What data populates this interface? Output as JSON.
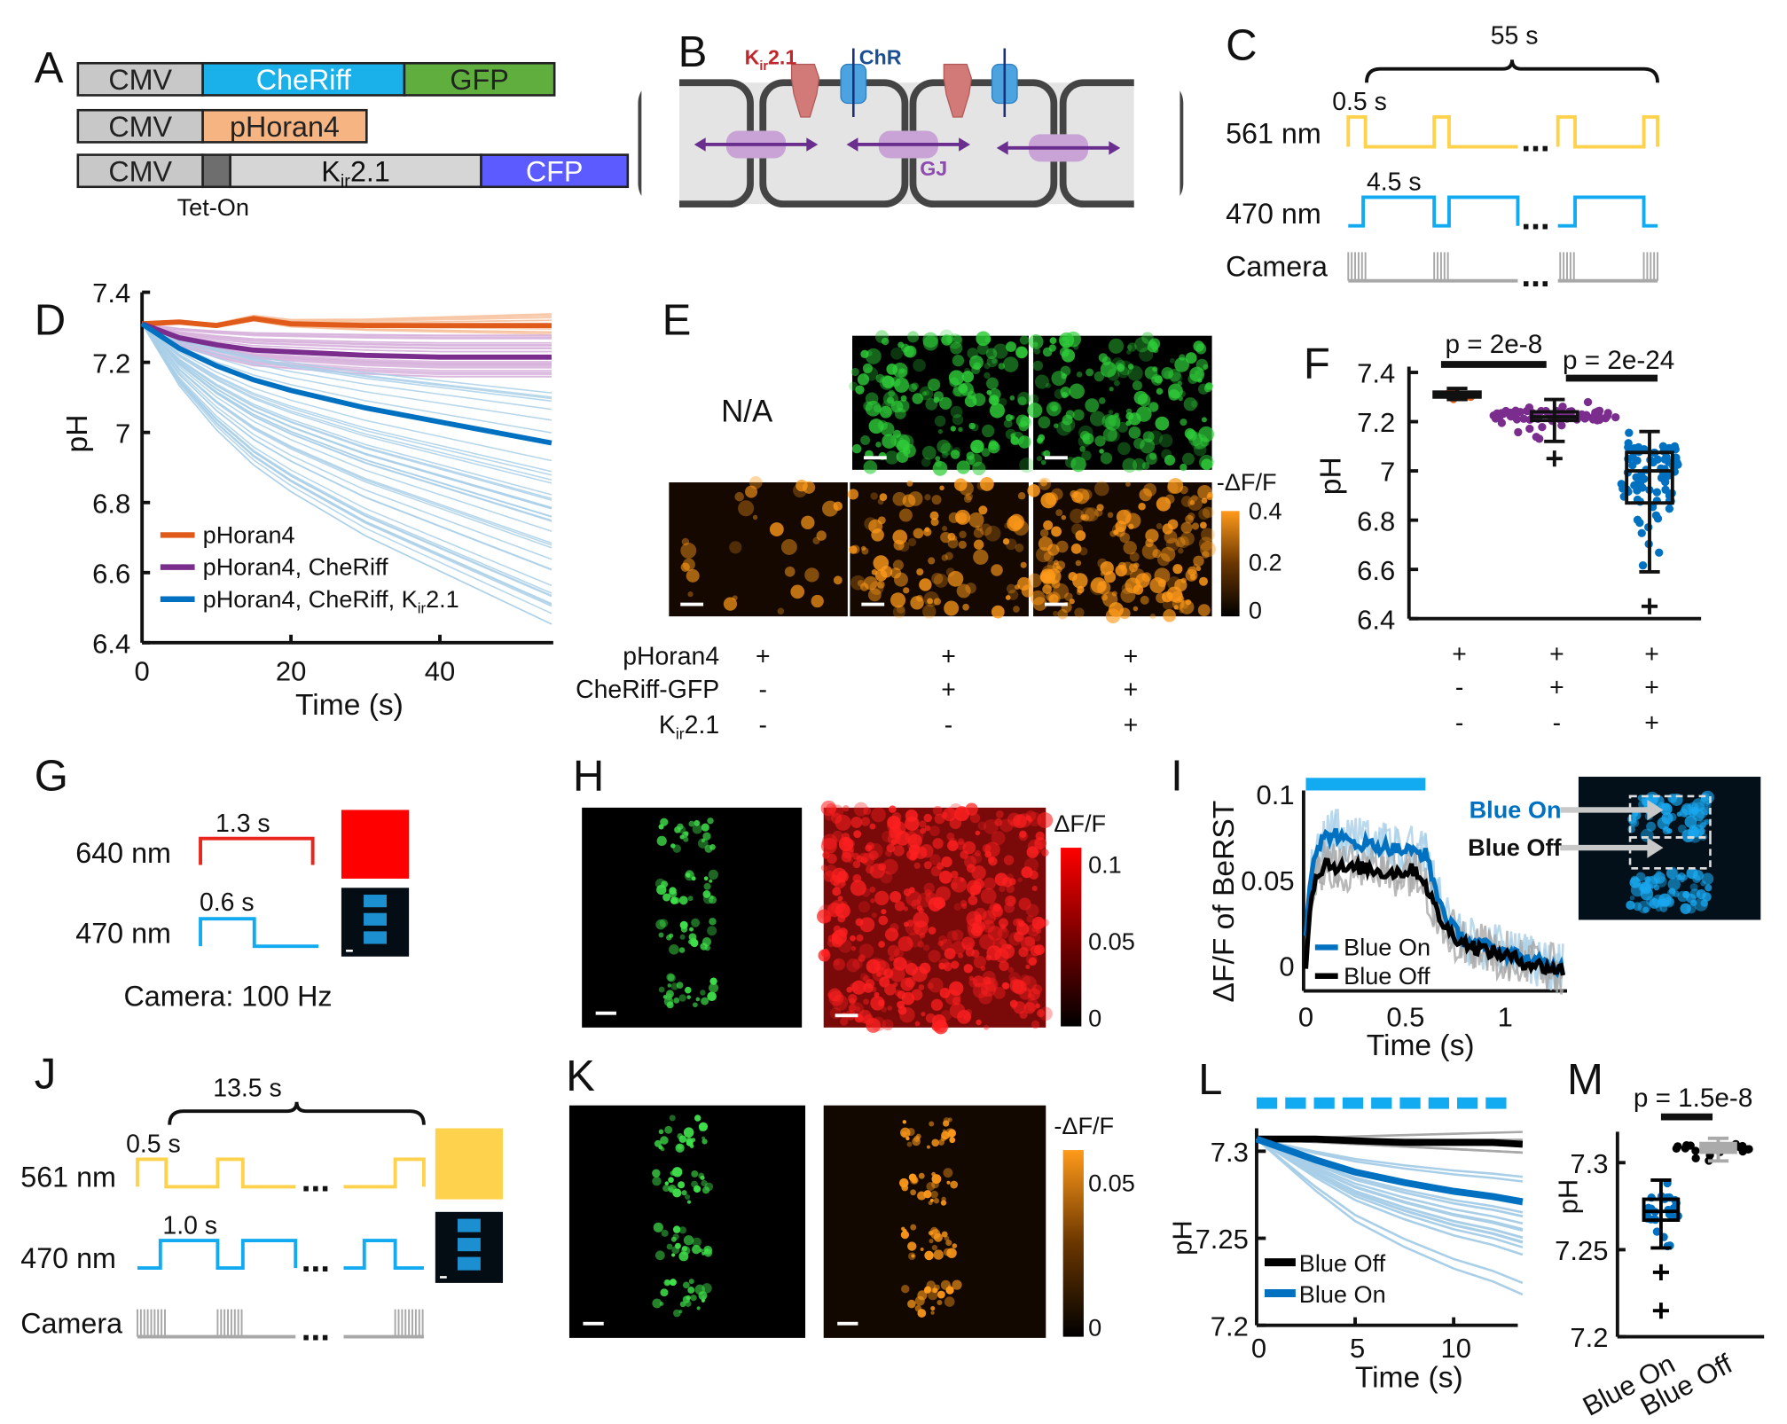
{
  "panel_labels": [
    "A",
    "B",
    "C",
    "D",
    "E",
    "F",
    "G",
    "H",
    "I",
    "J",
    "K",
    "L",
    "M"
  ],
  "colors": {
    "yellow": "#ffd24d",
    "blue": "#12aaf0",
    "dark_blue": "#0070c0",
    "orange": "#e05a1a",
    "purple": "#7b2d8e",
    "red": "#ff0000",
    "light_blue": "#a9cfe8",
    "gray": "#a8a8a8"
  },
  "panel_a": {
    "rows": [
      [
        {
          "label": "CMV",
          "color": "#c8c8c8"
        },
        {
          "label": "CheRiff",
          "color": "#1ab0ea",
          "text_color": "#ffffff"
        },
        {
          "label": "GFP",
          "color": "#5fae3e"
        }
      ],
      [
        {
          "label": "CMV",
          "color": "#c8c8c8"
        },
        {
          "label": "pHoran4",
          "color": "#f6b483"
        }
      ],
      [
        {
          "label": "CMV",
          "color": "#c8c8c8"
        },
        {
          "label": "",
          "color": "#6e6e6e"
        },
        {
          "label": "Kir2.1",
          "color": "#d6d6d6"
        },
        {
          "label": "CFP",
          "color": "#5b5bff",
          "text_color": "#ffffff"
        }
      ]
    ],
    "kir": {
      "main": "K",
      "sub": "ir",
      "rest": "2.1"
    },
    "tet_on": "Tet-On"
  },
  "panel_b": {
    "kir": {
      "main": "K",
      "sub": "ir",
      "rest": "2.1"
    },
    "chr": "ChR",
    "gj": "GJ",
    "kir_color": "#c0272d",
    "chr_color": "#1b4f93",
    "gj_color": "#8e4bb0"
  },
  "panel_c": {
    "total": "55 s",
    "pulse_561": "0.5 s",
    "pulse_470": "4.5 s",
    "row_561": "561 nm",
    "row_470": "470 nm",
    "row_camera": "Camera",
    "ellipsis": "..."
  },
  "panel_d": {
    "chart_data": {
      "type": "line",
      "xlabel": "Time (s)",
      "ylabel": "pH",
      "xlim": [
        0,
        55
      ],
      "ylim": [
        6.4,
        7.4
      ],
      "xticks": [
        "0",
        "20",
        "40"
      ],
      "yticks": [
        "6.4",
        "6.6",
        "6.8",
        "7",
        "7.2",
        "7.4"
      ],
      "legend_position": "bottom-left",
      "x": [
        0,
        5,
        10,
        15,
        20,
        30,
        40,
        55
      ],
      "series": [
        {
          "name": "pHoran4",
          "color": "#e05a1a",
          "trace_color": "#f7c19c",
          "values": [
            7.31,
            7.315,
            7.305,
            7.325,
            7.31,
            7.305,
            7.305,
            7.305
          ],
          "individual_final_range": [
            7.28,
            7.34
          ]
        },
        {
          "name": "pHoran4, CheRiff",
          "color": "#7b2d8e",
          "trace_color": "#d8b4dd",
          "values": [
            7.31,
            7.27,
            7.25,
            7.235,
            7.23,
            7.22,
            7.215,
            7.215
          ],
          "individual_final_range": [
            7.15,
            7.28
          ]
        },
        {
          "name": "pHoran4, CheRiff, Kir2.1",
          "name_parts": {
            "pre": "pHoran4, CheRiff, K",
            "sub": "ir",
            "rest": "2.1"
          },
          "color": "#0070c0",
          "trace_color": "#a9cfe8",
          "values": [
            7.31,
            7.24,
            7.19,
            7.15,
            7.12,
            7.07,
            7.03,
            6.97
          ],
          "individual_final_range": [
            6.45,
            7.13
          ]
        }
      ]
    }
  },
  "panel_e": {
    "na": "N/A",
    "colorbar_label": "-ΔF/F",
    "colorbar_ticks": [
      "0.4",
      "0.2",
      "0"
    ],
    "rows": [
      {
        "label": "pHoran4",
        "signs": [
          "+",
          "+",
          "+"
        ]
      },
      {
        "label": "CheRiff-GFP",
        "signs": [
          "-",
          "+",
          "+"
        ]
      },
      {
        "label_parts": {
          "main": "K",
          "sub": "ir",
          "rest": "2.1"
        },
        "signs": [
          "-",
          "-",
          "+"
        ]
      }
    ],
    "orange_intensity": [
      0.15,
      0.55,
      0.9
    ]
  },
  "panel_f": {
    "chart_data": {
      "type": "box",
      "ylabel": "pH",
      "ylim": [
        6.4,
        7.4
      ],
      "yticks": [
        "6.4",
        "6.6",
        "6.8",
        "7",
        "7.2",
        "7.4"
      ],
      "groups": [
        {
          "color": "#e05a1a",
          "median": 7.31,
          "q1": 7.3,
          "q3": 7.32,
          "whisker_low": 7.29,
          "whisker_high": 7.335,
          "outliers": [],
          "signs": [
            "+",
            "-",
            "-"
          ]
        },
        {
          "color": "#7b2d8e",
          "median": 7.22,
          "q1": 7.205,
          "q3": 7.24,
          "whisker_low": 7.12,
          "whisker_high": 7.29,
          "outliers": [
            7.05
          ],
          "signs": [
            "+",
            "+",
            "-"
          ]
        },
        {
          "color": "#0070c0",
          "median": 7.0,
          "q1": 6.87,
          "q3": 7.075,
          "whisker_low": 6.59,
          "whisker_high": 7.16,
          "outliers": [
            6.45
          ],
          "signs": [
            "+",
            "+",
            "+"
          ]
        }
      ],
      "comparisons": [
        {
          "label": "p = 2e-8",
          "between": [
            0,
            1
          ]
        },
        {
          "label": "p = 2e-24",
          "between": [
            1,
            2
          ]
        }
      ]
    }
  },
  "panel_g": {
    "pulse_640": "1.3 s",
    "pulse_470": "0.6 s",
    "row_640": "640 nm",
    "row_470": "470 nm",
    "camera": "Camera: 100 Hz"
  },
  "panel_h": {
    "colorbar_label": "ΔF/F",
    "colorbar_ticks": [
      "0.1",
      "0.05",
      "0"
    ]
  },
  "panel_i": {
    "chart_data": {
      "type": "line",
      "xlabel": "Time (s)",
      "ylabel": "ΔF/F of BeRST",
      "xlim": [
        0,
        1.3
      ],
      "ylim": [
        -0.015,
        0.105
      ],
      "xticks": [
        "0",
        "0.5",
        "1"
      ],
      "yticks": [
        "0",
        "0.05",
        "0.1"
      ],
      "legend_position": "bottom-left",
      "stimulus_interval": [
        0,
        0.6
      ],
      "x": [
        0,
        0.02,
        0.05,
        0.1,
        0.15,
        0.2,
        0.3,
        0.4,
        0.5,
        0.55,
        0.6,
        0.65,
        0.7,
        0.75,
        0.8,
        0.9,
        1.0,
        1.1,
        1.2,
        1.3
      ],
      "series": [
        {
          "name": "Blue On",
          "color": "#0070c0",
          "band_color": "#a9cfe8",
          "values": [
            0.02,
            0.05,
            0.068,
            0.075,
            0.077,
            0.072,
            0.071,
            0.069,
            0.067,
            0.066,
            0.065,
            0.045,
            0.028,
            0.02,
            0.015,
            0.011,
            0.008,
            0.004,
            0.001,
            -0.002
          ]
        },
        {
          "name": "Blue Off",
          "color": "#000000",
          "band_color": "#a8a8a8",
          "values": [
            0.0,
            0.035,
            0.052,
            0.06,
            0.058,
            0.056,
            0.057,
            0.054,
            0.055,
            0.056,
            0.048,
            0.033,
            0.022,
            0.017,
            0.013,
            0.009,
            0.006,
            0.002,
            -0.001,
            -0.003
          ]
        }
      ]
    },
    "image_labels": {
      "on": "Blue On",
      "off": "Blue Off"
    }
  },
  "panel_j": {
    "total": "13.5 s",
    "pulse_561": "0.5 s",
    "pulse_470": "1.0 s",
    "row_561": "561 nm",
    "row_470": "470 nm",
    "row_camera": "Camera",
    "ellipsis": "..."
  },
  "panel_k": {
    "colorbar_label": "-ΔF/F",
    "colorbar_ticks": [
      "0.05",
      "0"
    ]
  },
  "panel_l": {
    "chart_data": {
      "type": "line",
      "xlabel": "Time (s)",
      "ylabel": "pH",
      "xlim": [
        0,
        13.5
      ],
      "ylim": [
        7.2,
        7.31
      ],
      "xticks": [
        "0",
        "5",
        "10"
      ],
      "yticks": [
        "7.2",
        "7.25",
        "7.3"
      ],
      "legend_position": "bottom-left",
      "stimulus_pulses": 9,
      "x": [
        0,
        1.5,
        3,
        5,
        7.5,
        10,
        12,
        13.5
      ],
      "series": [
        {
          "name": "Blue Off",
          "color": "#000000",
          "trace_color": "#a8a8a8",
          "values": [
            7.307,
            7.307,
            7.307,
            7.306,
            7.305,
            7.305,
            7.305,
            7.304
          ],
          "individual_final_range": [
            7.297,
            7.313
          ]
        },
        {
          "name": "Blue On",
          "color": "#0070c0",
          "trace_color": "#a9cfe8",
          "values": [
            7.307,
            7.301,
            7.295,
            7.288,
            7.282,
            7.277,
            7.274,
            7.271
          ],
          "individual_final_range": [
            7.217,
            7.29
          ]
        }
      ]
    }
  },
  "panel_m": {
    "chart_data": {
      "type": "box",
      "ylabel": "pH",
      "ylim": [
        7.2,
        7.32
      ],
      "yticks": [
        "7.2",
        "7.25",
        "7.3"
      ],
      "categories": [
        "Blue On",
        "Blue Off"
      ],
      "groups": [
        {
          "color": "#0070c0",
          "box_color": "#000000",
          "median": 7.272,
          "q1": 7.267,
          "q3": 7.279,
          "whisker_low": 7.251,
          "whisker_high": 7.29,
          "outliers": [
            7.237,
            7.215
          ]
        },
        {
          "color": "#000000",
          "box_color": "#aaaaaa",
          "median": 7.309,
          "q1": 7.306,
          "q3": 7.311,
          "whisker_low": 7.301,
          "whisker_high": 7.314,
          "outliers": []
        }
      ],
      "comparisons": [
        {
          "label": "p = 1.5e-8",
          "between": [
            0,
            1
          ]
        }
      ]
    }
  }
}
